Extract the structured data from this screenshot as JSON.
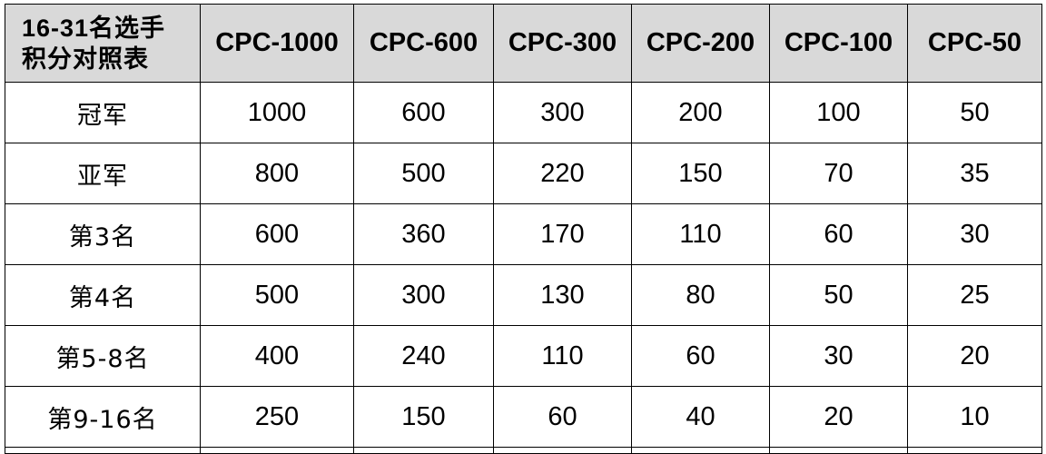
{
  "table": {
    "corner": {
      "line1": "16-31名选手",
      "line2": "积分对照表"
    },
    "columns": [
      "CPC-1000",
      "CPC-600",
      "CPC-300",
      "CPC-200",
      "CPC-100",
      "CPC-50"
    ],
    "rows": [
      {
        "rank": "冠军",
        "values": [
          "1000",
          "600",
          "300",
          "200",
          "100",
          "50"
        ]
      },
      {
        "rank": "亚军",
        "values": [
          "800",
          "500",
          "220",
          "150",
          "70",
          "35"
        ]
      },
      {
        "rank": "第3名",
        "values": [
          "600",
          "360",
          "170",
          "110",
          "60",
          "30"
        ]
      },
      {
        "rank": "第4名",
        "values": [
          "500",
          "300",
          "130",
          "80",
          "50",
          "25"
        ]
      },
      {
        "rank": "第5-8名",
        "values": [
          "400",
          "240",
          "110",
          "60",
          "30",
          "20"
        ]
      },
      {
        "rank": "第9-16名",
        "values": [
          "250",
          "150",
          "60",
          "40",
          "20",
          "10"
        ]
      }
    ]
  }
}
